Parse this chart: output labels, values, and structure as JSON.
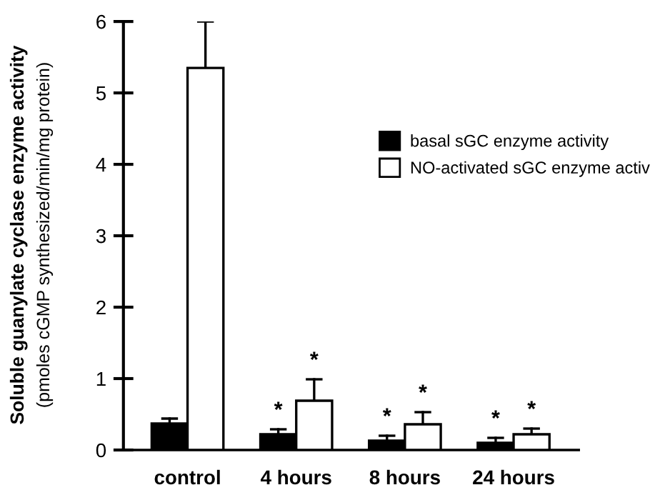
{
  "chart_data": {
    "type": "bar",
    "ylabel": "Soluble guanylate cyclase enzyme activity\n(pmoles cGMP synthesized/min/mg protein)",
    "categories": [
      "control",
      "4 hours",
      "8 hours",
      "24 hours"
    ],
    "series": [
      {
        "name": "basal sGC enzyme activity",
        "color": "#000000",
        "values": [
          0.37,
          0.22,
          0.13,
          0.1
        ],
        "errors": [
          [
            0.37,
            0.44
          ],
          [
            0.22,
            0.29
          ],
          [
            0.13,
            0.2
          ],
          [
            0.1,
            0.17
          ]
        ]
      },
      {
        "name": "NO-activated sGC enzyme activ",
        "color": "#ffffff",
        "values": [
          5.35,
          0.69,
          0.36,
          0.22
        ],
        "errors": [
          [
            5.35,
            6.0
          ],
          [
            0.69,
            0.99
          ],
          [
            0.36,
            0.53
          ],
          [
            0.22,
            0.3
          ]
        ]
      }
    ],
    "annotations": [
      "*",
      "*",
      "*",
      "*",
      "*",
      "*"
    ],
    "ylim": [
      0,
      6
    ],
    "yticks": [
      0,
      1,
      2,
      3,
      4,
      5,
      6
    ],
    "grid": false,
    "legend": "right"
  }
}
